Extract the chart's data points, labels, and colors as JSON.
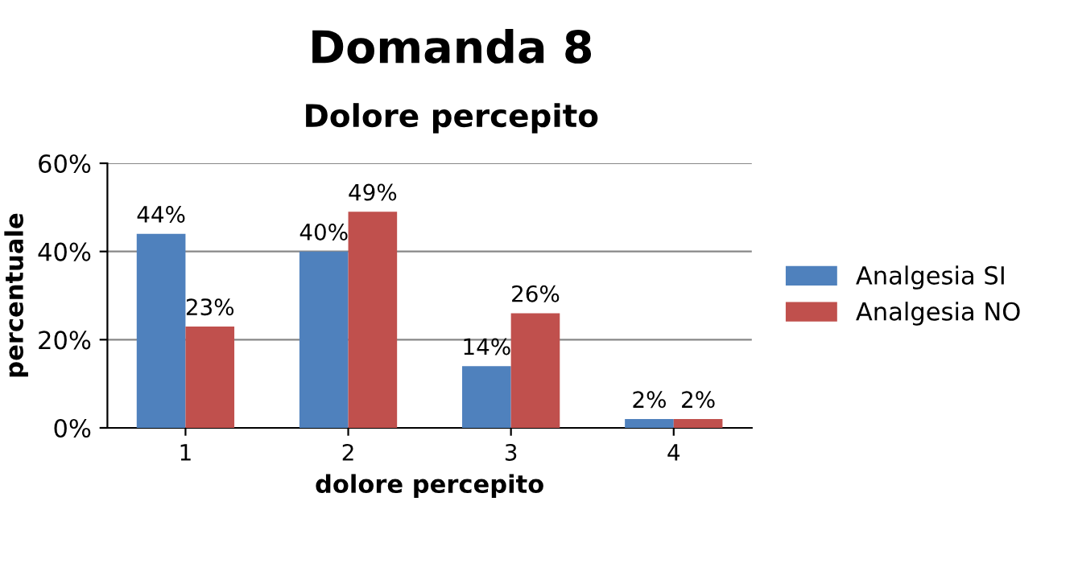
{
  "chart_data": {
    "type": "bar",
    "title": "Domanda 8",
    "subtitle": "Dolore percepito",
    "xlabel": "dolore percepito",
    "ylabel": "percentuale",
    "categories": [
      "1",
      "2",
      "3",
      "4"
    ],
    "series": [
      {
        "name": "Analgesia SI",
        "color": "#4f81bd",
        "values": [
          44,
          40,
          14,
          2
        ],
        "value_labels": [
          "44%",
          "40%",
          "14%",
          "2%"
        ]
      },
      {
        "name": "Analgesia NO",
        "color": "#c0504d",
        "values": [
          23,
          49,
          26,
          2
        ],
        "value_labels": [
          "23%",
          "49%",
          "26%",
          "2%"
        ]
      }
    ],
    "ylim": [
      0,
      60
    ],
    "yticks": [
      {
        "value": 0,
        "label": "0%"
      },
      {
        "value": 20,
        "label": "20%"
      },
      {
        "value": 40,
        "label": "40%"
      },
      {
        "value": 60,
        "label": "60%"
      }
    ],
    "grid": "y",
    "legend": "right"
  }
}
